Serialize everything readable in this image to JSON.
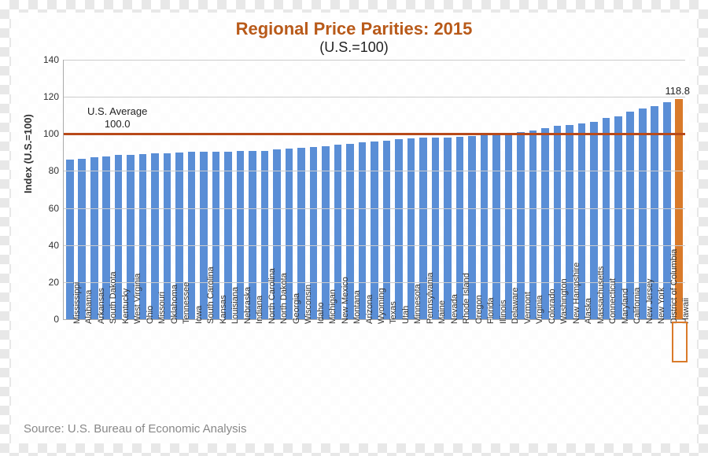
{
  "chart": {
    "type": "bar",
    "title": "Regional Price Parities: 2015",
    "subtitle": "(U.S.=100)",
    "y_axis_label": "Index (U.S.=100)",
    "ylim": [
      0,
      140
    ],
    "y_ticks": [
      0,
      20,
      40,
      60,
      80,
      100,
      120,
      140
    ],
    "reference_line": {
      "value": 100.0,
      "label_top": "U.S. Average",
      "label_bottom": "100.0",
      "color": "#b84a1a"
    },
    "bar_color": "#5a8ed6",
    "highlight_bar_color": "#d97a2a",
    "highlight_state": "Hawaii",
    "max_value_label": "118.8",
    "background_color": "#ffffff",
    "grid_color": "#cccccc",
    "title_color": "#b85a1a",
    "title_fontsize": 22,
    "subtitle_fontsize": 18,
    "axis_fontsize": 13,
    "tick_fontsize": 12,
    "xlabel_fontsize": 11,
    "states": [
      {
        "name": "Mississippi",
        "value": 86.0
      },
      {
        "name": "Alabama",
        "value": 86.5
      },
      {
        "name": "Arkansas",
        "value": 87.4
      },
      {
        "name": "South Dakota",
        "value": 88.0
      },
      {
        "name": "Kentucky",
        "value": 88.5
      },
      {
        "name": "West Virginia",
        "value": 88.8
      },
      {
        "name": "Ohio",
        "value": 89.2
      },
      {
        "name": "Missouri",
        "value": 89.4
      },
      {
        "name": "Oklahoma",
        "value": 89.7
      },
      {
        "name": "Tennessee",
        "value": 90.0
      },
      {
        "name": "Iowa",
        "value": 90.2
      },
      {
        "name": "South Carolina",
        "value": 90.3
      },
      {
        "name": "Kansas",
        "value": 90.4
      },
      {
        "name": "Louisiana",
        "value": 90.5
      },
      {
        "name": "Nebraska",
        "value": 90.6
      },
      {
        "name": "Indiana",
        "value": 90.8
      },
      {
        "name": "North Carolina",
        "value": 91.0
      },
      {
        "name": "North Dakota",
        "value": 91.5
      },
      {
        "name": "Georgia",
        "value": 92.0
      },
      {
        "name": "Wisconsin",
        "value": 92.5
      },
      {
        "name": "Idaho",
        "value": 93.0
      },
      {
        "name": "Michigan",
        "value": 93.3
      },
      {
        "name": "New Mexico",
        "value": 94.0
      },
      {
        "name": "Montana",
        "value": 94.5
      },
      {
        "name": "Arizona",
        "value": 95.5
      },
      {
        "name": "Wyoming",
        "value": 96.0
      },
      {
        "name": "Texas",
        "value": 96.5
      },
      {
        "name": "Utah",
        "value": 97.0
      },
      {
        "name": "Minnesota",
        "value": 97.5
      },
      {
        "name": "Pennsylvania",
        "value": 97.8
      },
      {
        "name": "Maine",
        "value": 98.0
      },
      {
        "name": "Nevada",
        "value": 98.2
      },
      {
        "name": "Rhode Island",
        "value": 98.5
      },
      {
        "name": "Oregon",
        "value": 99.0
      },
      {
        "name": "Florida",
        "value": 99.3
      },
      {
        "name": "Illinois",
        "value": 99.5
      },
      {
        "name": "Delaware",
        "value": 100.5
      },
      {
        "name": "Vermont",
        "value": 101.0
      },
      {
        "name": "Virginia",
        "value": 102.0
      },
      {
        "name": "Colorado",
        "value": 103.0
      },
      {
        "name": "Washington",
        "value": 104.5
      },
      {
        "name": "New Hampshire",
        "value": 105.0
      },
      {
        "name": "Alaska",
        "value": 105.5
      },
      {
        "name": "Massachusetts",
        "value": 106.5
      },
      {
        "name": "Connecticut",
        "value": 108.5
      },
      {
        "name": "Maryland",
        "value": 109.5
      },
      {
        "name": "California",
        "value": 112.0
      },
      {
        "name": "New Jersey",
        "value": 113.5
      },
      {
        "name": "New York",
        "value": 115.0
      },
      {
        "name": "District of Columbia",
        "value": 117.0
      },
      {
        "name": "Hawaii",
        "value": 118.8
      }
    ]
  },
  "source": "Source: U.S. Bureau of Economic Analysis"
}
